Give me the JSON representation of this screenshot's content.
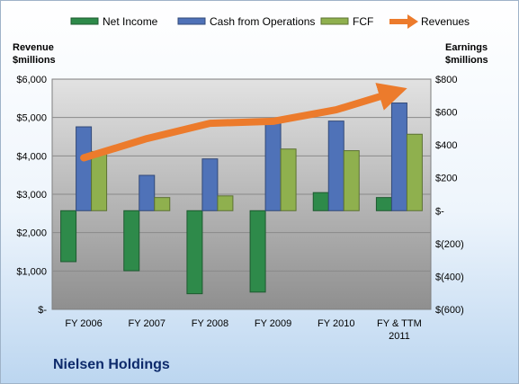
{
  "company": "Nielsen Holdings",
  "chart_data": {
    "type": "bar",
    "categories": [
      "FY 2006",
      "FY 2007",
      "FY 2008",
      "FY 2009",
      "FY 2010",
      "FY & TTM 2011"
    ],
    "left_axis": {
      "title_lines": [
        "Revenue",
        "$millions"
      ],
      "range": [
        0,
        6000
      ],
      "tick_labels": [
        "$-",
        "$1,000",
        "$2,000",
        "$3,000",
        "$4,000",
        "$5,000",
        "$6,000"
      ]
    },
    "right_axis": {
      "title_lines": [
        "Earnings",
        "$millions"
      ],
      "range": [
        -600,
        800
      ],
      "tick_labels": [
        "$(600)",
        "$(400)",
        "$(200)",
        "$-",
        "$200",
        "$400",
        "$600",
        "$800"
      ]
    },
    "series": [
      {
        "name": "Net Income",
        "type": "bar",
        "axis": "right",
        "color": "#2e8a4a",
        "values": [
          -310,
          -365,
          -505,
          -495,
          110,
          80
        ]
      },
      {
        "name": "Cash from Operations",
        "type": "bar",
        "axis": "right",
        "color": "#4f72b8",
        "values": [
          510,
          215,
          315,
          545,
          545,
          655
        ]
      },
      {
        "name": "FCF",
        "type": "bar",
        "axis": "right",
        "color": "#8fb04e",
        "values": [
          360,
          80,
          90,
          375,
          365,
          465
        ]
      },
      {
        "name": "Revenues",
        "type": "line",
        "axis": "left",
        "color": "#ec7b2c",
        "values": [
          3950,
          4450,
          4850,
          4900,
          5200,
          5700
        ]
      }
    ],
    "legend": "top",
    "grid": true
  }
}
